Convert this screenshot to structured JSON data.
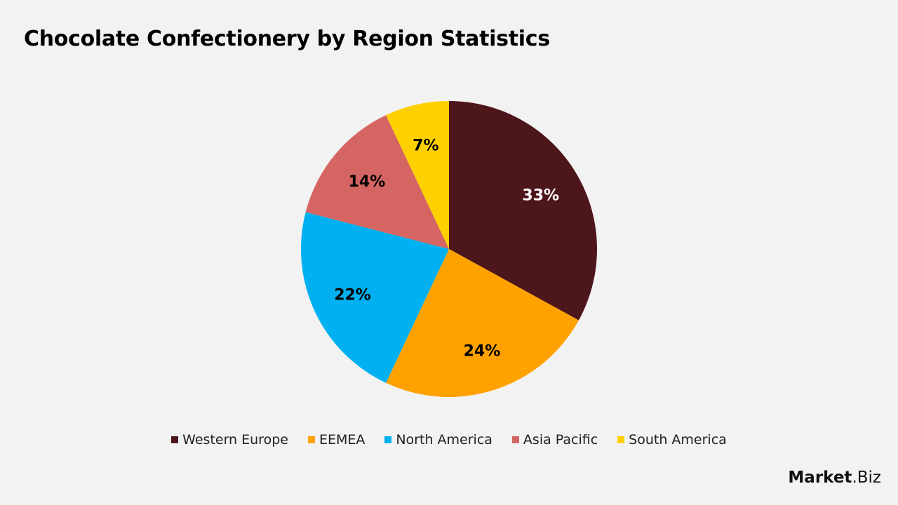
{
  "chart_data": {
    "type": "pie",
    "title": "Chocolate Confectionery by Region Statistics",
    "categories": [
      "Western Europe",
      "EEMEA",
      "North America",
      "Asia Pacific",
      "South America"
    ],
    "values": [
      33,
      24,
      22,
      14,
      7
    ],
    "labels": [
      "33%",
      "24%",
      "22%",
      "14%",
      "7%"
    ],
    "colors": [
      "#4d161a",
      "#ffa200",
      "#00b0f0",
      "#d46563",
      "#ffd000"
    ],
    "label_colors": [
      "#ffffff",
      "#000000",
      "#000000",
      "#000000",
      "#000000"
    ],
    "legend_position": "bottom",
    "start_angle": "top, clockwise"
  },
  "logo": {
    "bold": "Market",
    "rest": ".Biz"
  }
}
